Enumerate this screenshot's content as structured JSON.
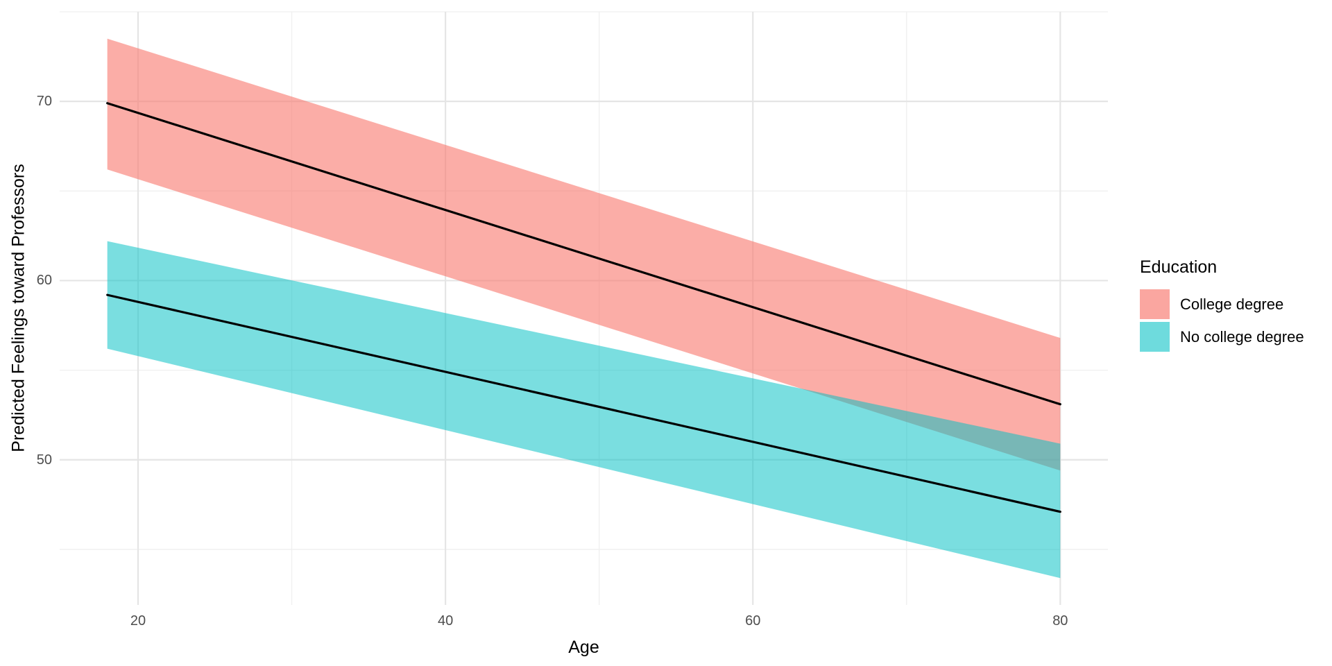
{
  "chart_data": {
    "type": "line",
    "title": "",
    "xlabel": "Age",
    "ylabel": "Predicted Feelings toward Professors",
    "x": [
      18,
      80
    ],
    "axes": {
      "xlim": [
        14.9,
        83.1
      ],
      "ylim": [
        41.9,
        75.0
      ],
      "x_ticks": [
        20,
        40,
        60,
        80
      ],
      "x_minor_ticks": [
        30,
        50,
        70
      ],
      "y_ticks": [
        50,
        60,
        70
      ],
      "y_minor_ticks": [
        45,
        55,
        65,
        75
      ],
      "grid": "on",
      "major_grid_color": "#e5e5e5",
      "minor_grid_color": "#efefef"
    },
    "legend": {
      "title": "Education",
      "position": "right"
    },
    "series": [
      {
        "name": "College degree",
        "type": "line_with_ribbon",
        "line_color": "#000000",
        "fill_color": "#F8766D",
        "fill_opacity": 0.6,
        "x": [
          18,
          80
        ],
        "y": [
          69.9,
          53.1
        ],
        "y_upper": [
          73.5,
          56.8
        ],
        "y_lower": [
          66.2,
          49.4
        ]
      },
      {
        "name": "No college degree",
        "type": "line_with_ribbon",
        "line_color": "#000000",
        "fill_color": "#00BFC4",
        "fill_opacity": 0.52,
        "x": [
          18,
          80
        ],
        "y": [
          59.2,
          47.1
        ],
        "y_upper": [
          62.2,
          50.9
        ],
        "y_lower": [
          56.2,
          43.4
        ]
      }
    ]
  }
}
